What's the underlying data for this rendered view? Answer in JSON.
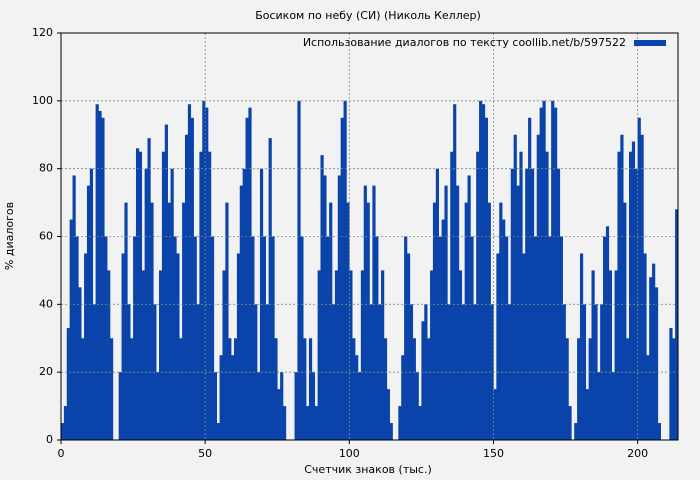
{
  "chart_data": {
    "type": "bar",
    "title": "Босиком по небу (СИ) (Николь Келлер)",
    "xlabel": "Счетчик знаков (тыс.)",
    "ylabel": "% диалогов",
    "xlim": [
      0,
      214
    ],
    "ylim": [
      0,
      120
    ],
    "xticks": [
      0,
      50,
      100,
      150,
      200
    ],
    "yticks": [
      0,
      20,
      40,
      60,
      80,
      100,
      120
    ],
    "grid": true,
    "legend": "upper right",
    "x": [
      0,
      1,
      2,
      3,
      4,
      5,
      6,
      7,
      8,
      9,
      10,
      11,
      12,
      13,
      14,
      15,
      16,
      17,
      18,
      19,
      20,
      21,
      22,
      23,
      24,
      25,
      26,
      27,
      28,
      29,
      30,
      31,
      32,
      33,
      34,
      35,
      36,
      37,
      38,
      39,
      40,
      41,
      42,
      43,
      44,
      45,
      46,
      47,
      48,
      49,
      50,
      51,
      52,
      53,
      54,
      55,
      56,
      57,
      58,
      59,
      60,
      61,
      62,
      63,
      64,
      65,
      66,
      67,
      68,
      69,
      70,
      71,
      72,
      73,
      74,
      75,
      76,
      77,
      78,
      79,
      80,
      81,
      82,
      83,
      84,
      85,
      86,
      87,
      88,
      89,
      90,
      91,
      92,
      93,
      94,
      95,
      96,
      97,
      98,
      99,
      100,
      101,
      102,
      103,
      104,
      105,
      106,
      107,
      108,
      109,
      110,
      111,
      112,
      113,
      114,
      115,
      116,
      117,
      118,
      119,
      120,
      121,
      122,
      123,
      124,
      125,
      126,
      127,
      128,
      129,
      130,
      131,
      132,
      133,
      134,
      135,
      136,
      137,
      138,
      139,
      140,
      141,
      142,
      143,
      144,
      145,
      146,
      147,
      148,
      149,
      150,
      151,
      152,
      153,
      154,
      155,
      156,
      157,
      158,
      159,
      160,
      161,
      162,
      163,
      164,
      165,
      166,
      167,
      168,
      169,
      170,
      171,
      172,
      173,
      174,
      175,
      176,
      177,
      178,
      179,
      180,
      181,
      182,
      183,
      184,
      185,
      186,
      187,
      188,
      189,
      190,
      191,
      192,
      193,
      194,
      195,
      196,
      197,
      198,
      199,
      200,
      201,
      202,
      203,
      204,
      205,
      206,
      207,
      208,
      209,
      210,
      211,
      212,
      213
    ],
    "series": [
      {
        "name": "Использование диалогов по тексту coollib.net/b/597522",
        "color": "#0a44aa",
        "values": [
          5,
          10,
          33,
          65,
          78,
          60,
          45,
          30,
          55,
          75,
          80,
          40,
          99,
          97,
          95,
          60,
          50,
          30,
          0,
          0,
          20,
          55,
          70,
          40,
          30,
          60,
          86,
          85,
          50,
          80,
          89,
          70,
          40,
          20,
          50,
          85,
          93,
          70,
          80,
          60,
          55,
          30,
          70,
          90,
          99,
          95,
          60,
          40,
          85,
          100,
          98,
          85,
          60,
          20,
          5,
          25,
          50,
          70,
          30,
          25,
          30,
          55,
          75,
          80,
          95,
          98,
          60,
          40,
          20,
          80,
          60,
          40,
          89,
          60,
          30,
          15,
          20,
          10,
          0,
          0,
          0,
          20,
          100,
          60,
          30,
          10,
          30,
          20,
          10,
          50,
          84,
          78,
          60,
          70,
          40,
          50,
          78,
          95,
          100,
          70,
          50,
          30,
          25,
          20,
          50,
          75,
          70,
          40,
          75,
          60,
          40,
          50,
          30,
          15,
          5,
          0,
          0,
          10,
          25,
          60,
          55,
          40,
          30,
          20,
          10,
          35,
          40,
          30,
          50,
          70,
          80,
          60,
          65,
          75,
          40,
          85,
          99,
          75,
          50,
          40,
          70,
          78,
          60,
          40,
          85,
          100,
          99,
          95,
          70,
          40,
          15,
          55,
          70,
          65,
          60,
          40,
          80,
          90,
          75,
          85,
          55,
          80,
          95,
          80,
          60,
          90,
          98,
          100,
          85,
          60,
          100,
          98,
          80,
          60,
          40,
          30,
          10,
          0,
          5,
          30,
          55,
          40,
          15,
          30,
          50,
          40,
          20,
          40,
          60,
          63,
          50,
          20,
          50,
          85,
          90,
          70,
          30,
          85,
          88,
          80,
          95,
          90,
          55,
          25,
          48,
          52,
          45,
          5,
          0,
          0,
          0,
          33,
          30,
          68
        ]
      }
    ]
  }
}
